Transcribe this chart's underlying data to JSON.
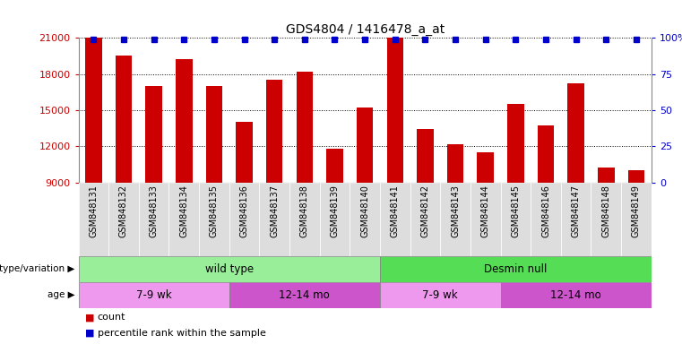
{
  "title": "GDS4804 / 1416478_a_at",
  "samples": [
    "GSM848131",
    "GSM848132",
    "GSM848133",
    "GSM848134",
    "GSM848135",
    "GSM848136",
    "GSM848137",
    "GSM848138",
    "GSM848139",
    "GSM848140",
    "GSM848141",
    "GSM848142",
    "GSM848143",
    "GSM848144",
    "GSM848145",
    "GSM848146",
    "GSM848147",
    "GSM848148",
    "GSM848149"
  ],
  "counts": [
    21000,
    19500,
    17000,
    19200,
    17000,
    14000,
    17500,
    18200,
    11800,
    15200,
    21000,
    13400,
    12200,
    11500,
    15500,
    13700,
    17200,
    10200,
    10000
  ],
  "bar_color": "#cc0000",
  "dot_color": "#0000cc",
  "ylim_left": [
    9000,
    21000
  ],
  "yticks_left": [
    9000,
    12000,
    15000,
    18000,
    21000
  ],
  "ylim_right": [
    0,
    100
  ],
  "yticks_right": [
    0,
    25,
    50,
    75,
    100
  ],
  "pct_rank": 99,
  "genotype_groups": [
    {
      "label": "wild type",
      "start": 0,
      "end": 10,
      "color": "#99ee99"
    },
    {
      "label": "Desmin null",
      "start": 10,
      "end": 19,
      "color": "#55dd55"
    }
  ],
  "age_groups": [
    {
      "label": "7-9 wk",
      "start": 0,
      "end": 5,
      "color": "#ee99ee"
    },
    {
      "label": "12-14 mo",
      "start": 5,
      "end": 10,
      "color": "#cc55cc"
    },
    {
      "label": "7-9 wk",
      "start": 10,
      "end": 14,
      "color": "#ee99ee"
    },
    {
      "label": "12-14 mo",
      "start": 14,
      "end": 19,
      "color": "#cc55cc"
    }
  ],
  "genotype_label": "genotype/variation",
  "age_label": "age",
  "legend_count_label": "count",
  "legend_pct_label": "percentile rank within the sample",
  "xtick_bg": "#dddddd",
  "spine_color": "#888888"
}
